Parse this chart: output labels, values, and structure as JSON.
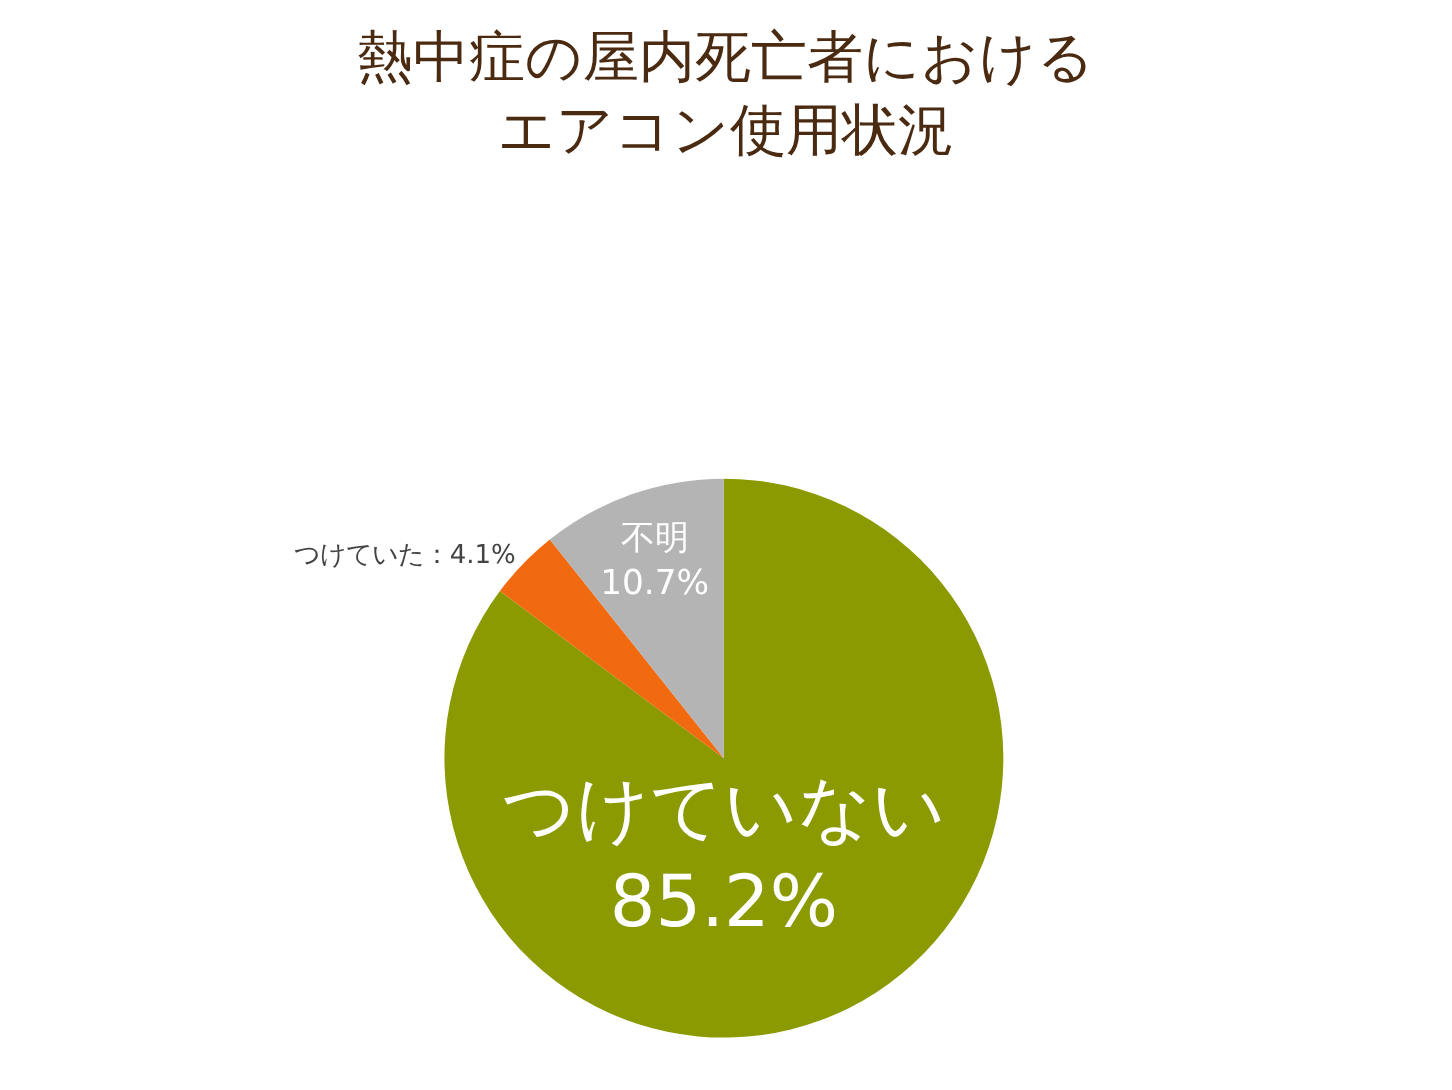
{
  "chart_data": {
    "type": "pie",
    "title": "熱中症の屋内死亡者におけるエアコン使用状況",
    "categories": [
      "つけていない",
      "つけていた",
      "不明"
    ],
    "values": [
      85.2,
      4.1,
      10.7
    ],
    "colors": [
      "#8a9a00",
      "#f26a10",
      "#b4b4b4"
    ],
    "value_labels": [
      "85.2%",
      "：4.1%",
      "10.7%"
    ],
    "legend": false
  }
}
